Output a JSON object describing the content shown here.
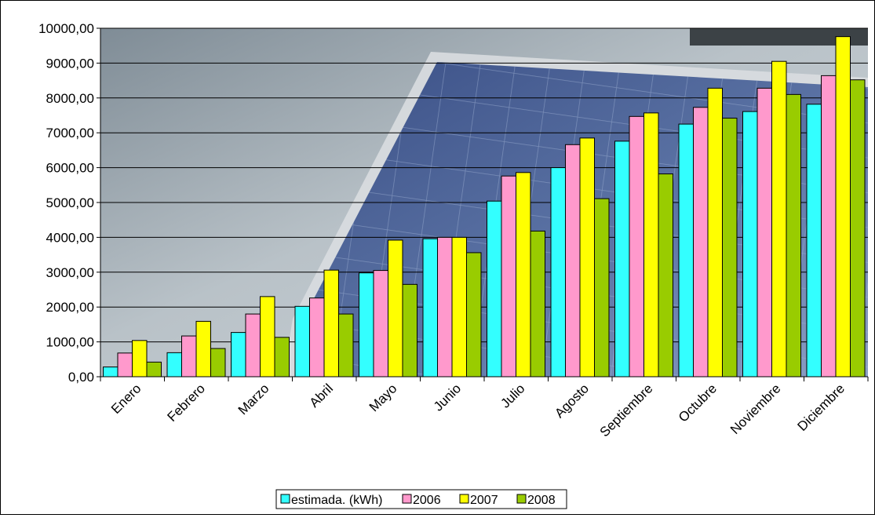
{
  "chart_data": {
    "type": "bar",
    "categories": [
      "Enero",
      "Febrero",
      "Marzo",
      "Abril",
      "Mayo",
      "Junio",
      "Julio",
      "Agosto",
      "Septiembre",
      "Octubre",
      "Noviembre",
      "Diciembre"
    ],
    "series": [
      {
        "name": "estimada. (kWh)",
        "color": "#33ffff",
        "values": [
          280,
          690,
          1270,
          2020,
          2980,
          3960,
          5040,
          6000,
          6760,
          7250,
          7610,
          7820
        ]
      },
      {
        "name": "2006",
        "color": "#ff99cc",
        "values": [
          680,
          1170,
          1800,
          2260,
          3050,
          4000,
          5760,
          6660,
          7470,
          7730,
          8280,
          8640
        ]
      },
      {
        "name": "2007",
        "color": "#ffff00",
        "values": [
          1040,
          1590,
          2300,
          3060,
          3920,
          4000,
          5860,
          6850,
          7570,
          8280,
          9050,
          9760
        ]
      },
      {
        "name": "2008",
        "color": "#99cc00",
        "values": [
          420,
          810,
          1130,
          1800,
          2650,
          3560,
          4180,
          5110,
          5820,
          7420,
          8100,
          8520
        ]
      }
    ],
    "y_ticks": [
      "0,00",
      "1000,00",
      "2000,00",
      "3000,00",
      "4000,00",
      "5000,00",
      "6000,00",
      "7000,00",
      "8000,00",
      "9000,00",
      "10000,00"
    ],
    "ylim": [
      0,
      10000
    ],
    "grid": true,
    "legend_position": "bottom",
    "background": "solar-panel-photo"
  }
}
